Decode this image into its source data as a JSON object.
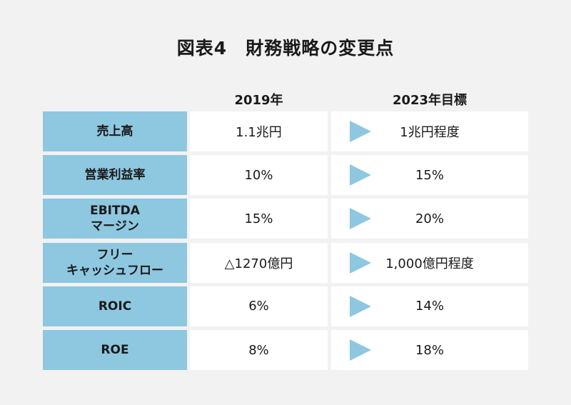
{
  "title": "図表4　財務戦略の変更点",
  "columns": {
    "current": "2019年",
    "target": "2023年目標"
  },
  "icons": {
    "row_arrow": "right-triangle-arrow-icon"
  },
  "colors": {
    "label_bg": "#8ec7e0",
    "arrow": "#8ec7e0",
    "cell_bg": "#ffffff",
    "page_bg": "#f2f2f2"
  },
  "chart_data": {
    "type": "table",
    "title": "図表4　財務戦略の変更点",
    "columns": [
      "",
      "2019年",
      "2023年目標"
    ],
    "rows": [
      {
        "label": [
          "売上高"
        ],
        "current": "1.1兆円",
        "target": "1兆円程度"
      },
      {
        "label": [
          "営業利益率"
        ],
        "current": "10%",
        "target": "15%"
      },
      {
        "label": [
          "EBITDA",
          "マージン"
        ],
        "current": "15%",
        "target": "20%"
      },
      {
        "label": [
          "フリー",
          "キャッシュフロー"
        ],
        "current": "△1270億円",
        "target": "1,000億円程度"
      },
      {
        "label": [
          "ROIC"
        ],
        "current": "6%",
        "target": "14%"
      },
      {
        "label": [
          "ROE"
        ],
        "current": "8%",
        "target": "18%"
      }
    ]
  }
}
